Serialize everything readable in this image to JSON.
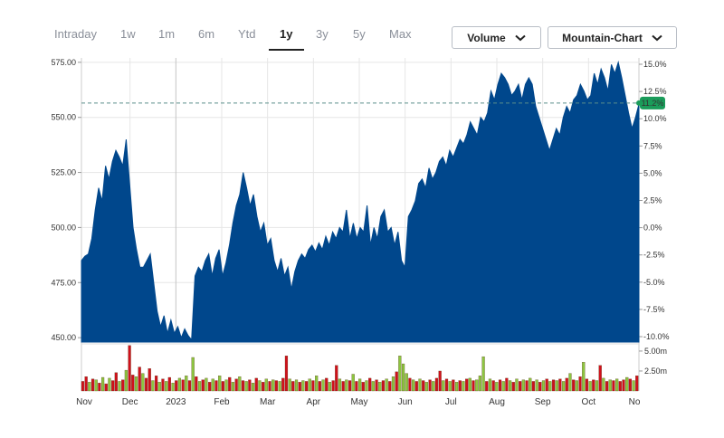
{
  "range_tabs": [
    {
      "label": "Intraday",
      "active": false
    },
    {
      "label": "1w",
      "active": false
    },
    {
      "label": "1m",
      "active": false
    },
    {
      "label": "6m",
      "active": false
    },
    {
      "label": "Ytd",
      "active": false
    },
    {
      "label": "1y",
      "active": true
    },
    {
      "label": "3y",
      "active": false
    },
    {
      "label": "5y",
      "active": false
    },
    {
      "label": "Max",
      "active": false
    }
  ],
  "dropdowns": {
    "indicator_label": "Volume",
    "chart_type_label": "Mountain-Chart",
    "icon": "chevron-down-icon"
  },
  "colors": {
    "area": "#00478c",
    "volume_up": "#8cc63f",
    "volume_down": "#d0101b",
    "badge": "#1a9c5a",
    "grid": "#e6e6e6"
  },
  "chart_data": {
    "type": "area",
    "price_axis": {
      "ticks": [
        "575.00",
        "550.00",
        "525.00",
        "500.00",
        "475.00",
        "450.00"
      ],
      "ylim": [
        448,
        577
      ]
    },
    "percent_axis": {
      "ticks": [
        "15.0%",
        "12.5%",
        "10.0%",
        "7.5%",
        "5.0%",
        "2.5%",
        "0.0%",
        "-2.5%",
        "-5.0%",
        "-7.5%",
        "-10.0%"
      ]
    },
    "volume_axis": {
      "ticks": [
        "5.00m",
        "2.50m"
      ]
    },
    "x_labels": [
      "Nov",
      "Dec",
      "2023",
      "Feb",
      "Mar",
      "Apr",
      "May",
      "Jun",
      "Jul",
      "Aug",
      "Sep",
      "Oct",
      "No"
    ],
    "current_change_badge": "11.2%",
    "reference_line": 556.5,
    "series": [
      {
        "values": [
          485,
          487,
          488,
          495,
          508,
          518,
          512,
          528,
          522,
          530,
          535,
          532,
          528,
          540,
          520,
          500,
          490,
          482,
          482,
          485,
          488,
          475,
          462,
          455,
          460,
          452,
          458,
          452,
          455,
          450,
          454,
          451,
          449,
          478,
          482,
          480,
          485,
          488,
          478,
          486,
          490,
          478,
          484,
          492,
          502,
          510,
          515,
          525,
          518,
          510,
          515,
          505,
          498,
          502,
          492,
          495,
          485,
          480,
          486,
          478,
          482,
          472,
          480,
          485,
          488,
          486,
          490,
          492,
          489,
          493,
          490,
          496,
          492,
          498,
          495,
          500,
          498,
          508,
          495,
          502,
          495,
          500,
          498,
          510,
          492,
          500,
          495,
          505,
          508,
          498,
          500,
          492,
          498,
          485,
          482,
          505,
          508,
          512,
          520,
          522,
          518,
          527,
          522,
          525,
          530,
          532,
          528,
          535,
          532,
          536,
          540,
          538,
          542,
          548,
          545,
          542,
          550,
          548,
          552,
          562,
          558,
          565,
          570,
          568,
          565,
          560,
          562,
          565,
          558,
          565,
          568,
          565,
          555,
          550,
          545,
          540,
          535,
          540,
          545,
          542,
          550,
          555,
          552,
          558,
          560,
          565,
          562,
          558,
          560,
          570,
          565,
          572,
          568,
          562,
          574,
          570,
          575,
          568,
          560,
          552,
          545,
          550,
          556
        ]
      }
    ],
    "volume": [
      {
        "v": 1.2,
        "up": false
      },
      {
        "v": 1.8,
        "up": false
      },
      {
        "v": 1.1,
        "up": true
      },
      {
        "v": 1.5,
        "up": false
      },
      {
        "v": 1.4,
        "up": true
      },
      {
        "v": 1.0,
        "up": false
      },
      {
        "v": 1.7,
        "up": true
      },
      {
        "v": 0.9,
        "up": false
      },
      {
        "v": 1.6,
        "up": true
      },
      {
        "v": 1.3,
        "up": false
      },
      {
        "v": 2.3,
        "up": false
      },
      {
        "v": 1.2,
        "up": true
      },
      {
        "v": 1.4,
        "up": false
      },
      {
        "v": 2.6,
        "up": true
      },
      {
        "v": 5.7,
        "up": false
      },
      {
        "v": 2.0,
        "up": false
      },
      {
        "v": 1.8,
        "up": true
      },
      {
        "v": 3.0,
        "up": false
      },
      {
        "v": 2.2,
        "up": true
      },
      {
        "v": 1.6,
        "up": false
      },
      {
        "v": 2.8,
        "up": false
      },
      {
        "v": 1.3,
        "up": true
      },
      {
        "v": 1.9,
        "up": false
      },
      {
        "v": 1.1,
        "up": true
      },
      {
        "v": 1.5,
        "up": false
      },
      {
        "v": 1.2,
        "up": true
      },
      {
        "v": 1.7,
        "up": false
      },
      {
        "v": 1.0,
        "up": true
      },
      {
        "v": 1.3,
        "up": false
      },
      {
        "v": 1.6,
        "up": true
      },
      {
        "v": 1.4,
        "up": false
      },
      {
        "v": 1.9,
        "up": true
      },
      {
        "v": 1.3,
        "up": false
      },
      {
        "v": 4.2,
        "up": true
      },
      {
        "v": 1.8,
        "up": false
      },
      {
        "v": 1.2,
        "up": true
      },
      {
        "v": 1.4,
        "up": false
      },
      {
        "v": 1.6,
        "up": true
      },
      {
        "v": 1.1,
        "up": false
      },
      {
        "v": 1.5,
        "up": true
      },
      {
        "v": 1.3,
        "up": false
      },
      {
        "v": 1.9,
        "up": true
      },
      {
        "v": 1.2,
        "up": false
      },
      {
        "v": 1.4,
        "up": true
      },
      {
        "v": 1.7,
        "up": false
      },
      {
        "v": 1.1,
        "up": true
      },
      {
        "v": 1.5,
        "up": false
      },
      {
        "v": 1.8,
        "up": true
      },
      {
        "v": 1.3,
        "up": false
      },
      {
        "v": 1.2,
        "up": true
      },
      {
        "v": 1.4,
        "up": false
      },
      {
        "v": 1.0,
        "up": true
      },
      {
        "v": 1.6,
        "up": false
      },
      {
        "v": 1.3,
        "up": true
      },
      {
        "v": 1.1,
        "up": false
      },
      {
        "v": 1.5,
        "up": true
      },
      {
        "v": 1.2,
        "up": false
      },
      {
        "v": 1.4,
        "up": true
      },
      {
        "v": 1.3,
        "up": false
      },
      {
        "v": 1.2,
        "up": true
      },
      {
        "v": 1.6,
        "up": false
      },
      {
        "v": 4.4,
        "up": false
      },
      {
        "v": 1.5,
        "up": true
      },
      {
        "v": 1.2,
        "up": false
      },
      {
        "v": 1.4,
        "up": true
      },
      {
        "v": 1.1,
        "up": false
      },
      {
        "v": 1.3,
        "up": true
      },
      {
        "v": 1.2,
        "up": false
      },
      {
        "v": 1.5,
        "up": true
      },
      {
        "v": 1.3,
        "up": false
      },
      {
        "v": 1.9,
        "up": true
      },
      {
        "v": 1.2,
        "up": false
      },
      {
        "v": 1.4,
        "up": true
      },
      {
        "v": 1.6,
        "up": false
      },
      {
        "v": 1.1,
        "up": true
      },
      {
        "v": 1.3,
        "up": false
      },
      {
        "v": 3.2,
        "up": false
      },
      {
        "v": 1.5,
        "up": true
      },
      {
        "v": 1.2,
        "up": false
      },
      {
        "v": 1.4,
        "up": true
      },
      {
        "v": 1.3,
        "up": false
      },
      {
        "v": 2.1,
        "up": true
      },
      {
        "v": 1.2,
        "up": false
      },
      {
        "v": 1.5,
        "up": true
      },
      {
        "v": 1.1,
        "up": false
      },
      {
        "v": 1.3,
        "up": true
      },
      {
        "v": 1.6,
        "up": false
      },
      {
        "v": 1.2,
        "up": true
      },
      {
        "v": 1.4,
        "up": false
      },
      {
        "v": 1.1,
        "up": true
      },
      {
        "v": 1.3,
        "up": false
      },
      {
        "v": 1.5,
        "up": true
      },
      {
        "v": 1.2,
        "up": false
      },
      {
        "v": 1.8,
        "up": true
      },
      {
        "v": 2.4,
        "up": false
      },
      {
        "v": 4.4,
        "up": true
      },
      {
        "v": 3.4,
        "up": true
      },
      {
        "v": 2.2,
        "up": true
      },
      {
        "v": 1.6,
        "up": false
      },
      {
        "v": 1.4,
        "up": true
      },
      {
        "v": 1.2,
        "up": false
      },
      {
        "v": 1.5,
        "up": true
      },
      {
        "v": 1.3,
        "up": false
      },
      {
        "v": 1.1,
        "up": true
      },
      {
        "v": 1.4,
        "up": false
      },
      {
        "v": 1.2,
        "up": true
      },
      {
        "v": 1.6,
        "up": false
      },
      {
        "v": 2.5,
        "up": false
      },
      {
        "v": 1.3,
        "up": true
      },
      {
        "v": 1.5,
        "up": false
      },
      {
        "v": 1.2,
        "up": true
      },
      {
        "v": 1.4,
        "up": false
      },
      {
        "v": 1.1,
        "up": true
      },
      {
        "v": 1.3,
        "up": false
      },
      {
        "v": 1.2,
        "up": true
      },
      {
        "v": 1.5,
        "up": false
      },
      {
        "v": 1.6,
        "up": true
      },
      {
        "v": 1.3,
        "up": false
      },
      {
        "v": 1.4,
        "up": true
      },
      {
        "v": 1.9,
        "up": true
      },
      {
        "v": 4.3,
        "up": true
      },
      {
        "v": 1.2,
        "up": false
      },
      {
        "v": 1.5,
        "up": true
      },
      {
        "v": 1.3,
        "up": false
      },
      {
        "v": 1.1,
        "up": true
      },
      {
        "v": 1.4,
        "up": false
      },
      {
        "v": 1.2,
        "up": true
      },
      {
        "v": 1.6,
        "up": false
      },
      {
        "v": 1.3,
        "up": true
      },
      {
        "v": 1.1,
        "up": false
      },
      {
        "v": 1.5,
        "up": true
      },
      {
        "v": 1.2,
        "up": false
      },
      {
        "v": 1.4,
        "up": true
      },
      {
        "v": 1.3,
        "up": false
      },
      {
        "v": 1.6,
        "up": true
      },
      {
        "v": 1.2,
        "up": false
      },
      {
        "v": 1.4,
        "up": true
      },
      {
        "v": 1.1,
        "up": false
      },
      {
        "v": 1.3,
        "up": true
      },
      {
        "v": 1.5,
        "up": false
      },
      {
        "v": 1.2,
        "up": true
      },
      {
        "v": 1.4,
        "up": false
      },
      {
        "v": 1.3,
        "up": true
      },
      {
        "v": 1.5,
        "up": false
      },
      {
        "v": 1.2,
        "up": true
      },
      {
        "v": 1.6,
        "up": false
      },
      {
        "v": 2.2,
        "up": true
      },
      {
        "v": 1.4,
        "up": false
      },
      {
        "v": 1.3,
        "up": true
      },
      {
        "v": 1.8,
        "up": false
      },
      {
        "v": 3.6,
        "up": true
      },
      {
        "v": 1.5,
        "up": false
      },
      {
        "v": 1.2,
        "up": true
      },
      {
        "v": 1.4,
        "up": false
      },
      {
        "v": 1.3,
        "up": true
      },
      {
        "v": 3.2,
        "up": false
      },
      {
        "v": 1.6,
        "up": true
      },
      {
        "v": 1.2,
        "up": false
      },
      {
        "v": 1.4,
        "up": true
      },
      {
        "v": 1.3,
        "up": false
      },
      {
        "v": 1.5,
        "up": true
      },
      {
        "v": 1.2,
        "up": false
      },
      {
        "v": 1.4,
        "up": false
      },
      {
        "v": 1.7,
        "up": true
      },
      {
        "v": 1.5,
        "up": false
      },
      {
        "v": 1.3,
        "up": true
      },
      {
        "v": 1.9,
        "up": false
      }
    ]
  }
}
